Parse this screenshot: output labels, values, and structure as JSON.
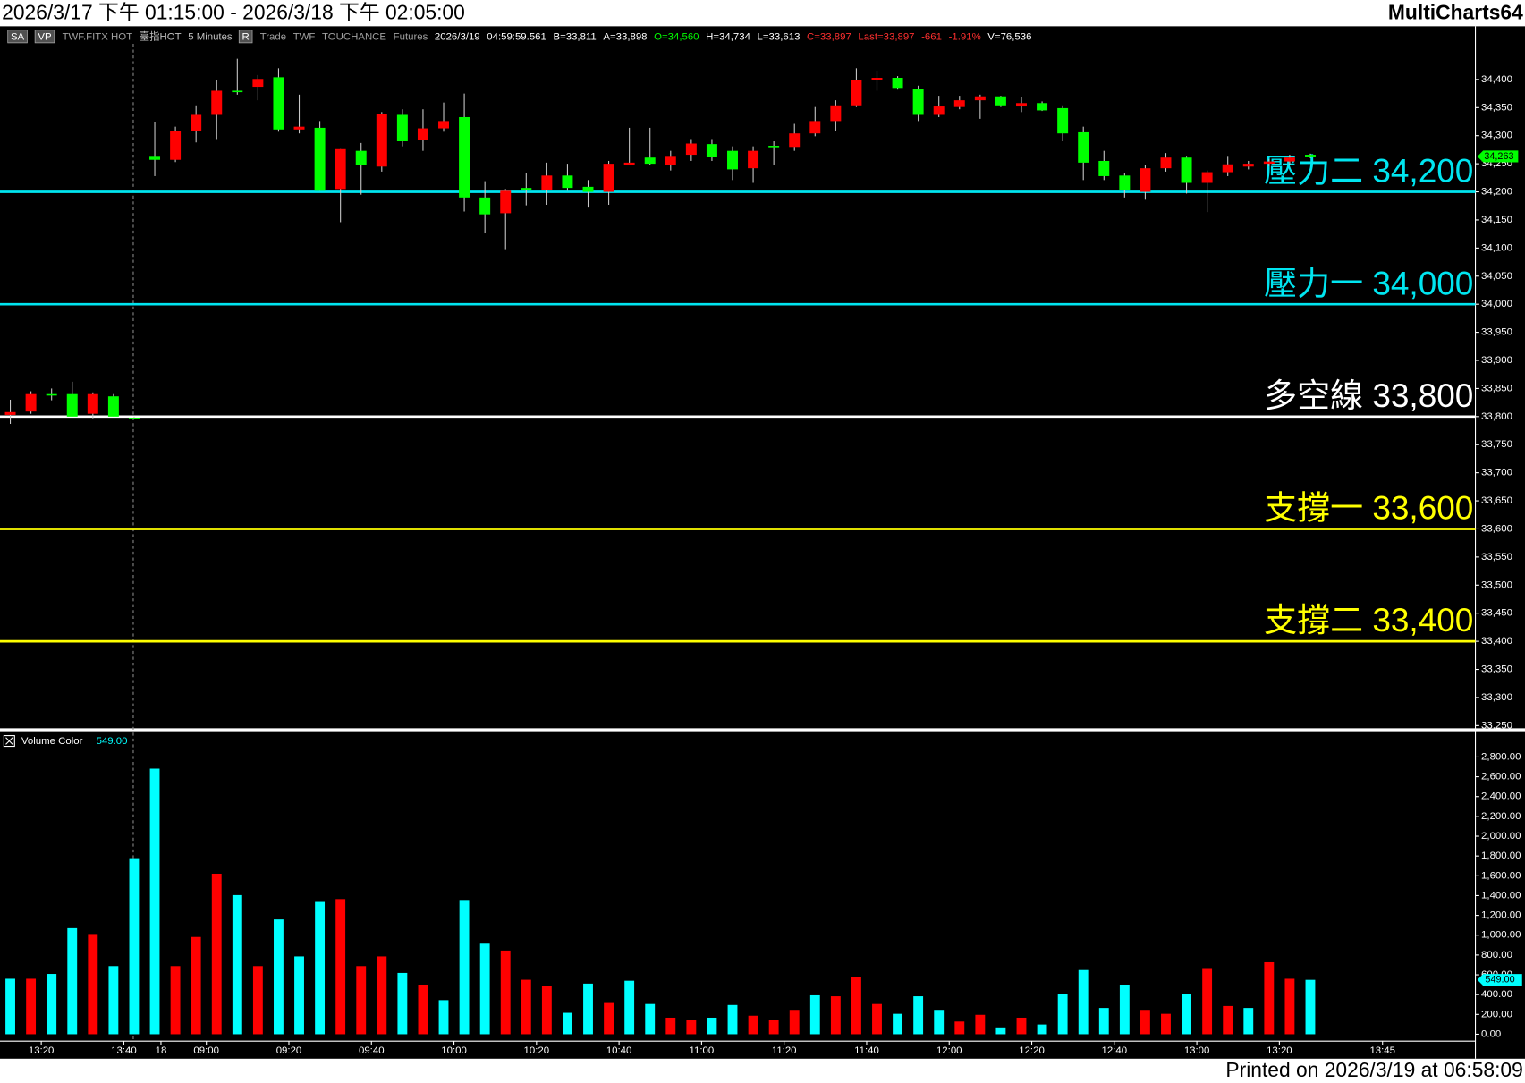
{
  "header": {
    "range": "2026/3/17 下午 01:15:00 - 2026/3/18 下午 02:05:00",
    "app": "MultiCharts64",
    "printed": "Printed on 2026/3/19 at 06:58:09"
  },
  "toolbar": [
    {
      "text": "SA",
      "color": "#ffffff",
      "boxed": true
    },
    {
      "text": "VP",
      "color": "#ffffff",
      "boxed": true
    },
    {
      "text": "TWF.FITX HOT",
      "color": "#a0a0a0"
    },
    {
      "text": "臺指HOT",
      "color": "#c0c0c0"
    },
    {
      "text": "5 Minutes",
      "color": "#c0c0c0"
    },
    {
      "text": "R",
      "color": "#ffffff",
      "boxed": true
    },
    {
      "text": "Trade",
      "color": "#a0a0a0"
    },
    {
      "text": "TWF",
      "color": "#a0a0a0"
    },
    {
      "text": "TOUCHANCE",
      "color": "#a0a0a0"
    },
    {
      "text": "Futures",
      "color": "#a0a0a0"
    },
    {
      "text": "2026/3/19",
      "color": "#ffffff"
    },
    {
      "text": "04:59:59.561",
      "color": "#ffffff"
    },
    {
      "text": "B=33,811",
      "color": "#ffffff"
    },
    {
      "text": "A=33,898",
      "color": "#ffffff"
    },
    {
      "text": "O=34,560",
      "color": "#00ff00"
    },
    {
      "text": "H=34,734",
      "color": "#ffffff"
    },
    {
      "text": "L=33,613",
      "color": "#ffffff"
    },
    {
      "text": "C=33,897",
      "color": "#ff3030"
    },
    {
      "text": "Last=33,897",
      "color": "#ff3030"
    },
    {
      "text": "-661",
      "color": "#ff3030"
    },
    {
      "text": "-1.91%",
      "color": "#ff3030"
    },
    {
      "text": "V=76,536",
      "color": "#ffffff"
    }
  ],
  "chart_data": [
    {
      "type": "candlestick",
      "up_color": "#ff0000",
      "down_color": "#00ff00",
      "wick_color": "#c8c8c8",
      "open": [
        33803,
        33809,
        33840,
        33840,
        33805,
        33836,
        33798,
        34264,
        34257,
        34309,
        34337,
        34380,
        34387,
        34404,
        34311,
        34314,
        34205,
        34273,
        34245,
        34337,
        34293,
        34313,
        34333,
        34190,
        34162,
        34207,
        34203,
        34229,
        34209,
        34200,
        34247,
        34261,
        34247,
        34266,
        34285,
        34273,
        34242,
        34282,
        34280,
        34304,
        34326,
        34354,
        34399,
        34403,
        34383,
        34337,
        34351,
        34363,
        34370,
        34352,
        34358,
        34349,
        34306,
        34255,
        34229,
        34200,
        34242,
        34261,
        34216,
        34235,
        34245,
        34250,
        34254,
        34266
      ],
      "high": [
        33830,
        33845,
        33850,
        33862,
        33843,
        33840,
        33800,
        34325,
        34316,
        34354,
        34399,
        34437,
        34408,
        34420,
        34373,
        34326,
        34276,
        34287,
        34342,
        34347,
        34347,
        34359,
        34375,
        34219,
        34205,
        34233,
        34252,
        34250,
        34221,
        34255,
        34314,
        34314,
        34273,
        34294,
        34294,
        34281,
        34281,
        34290,
        34321,
        34351,
        34363,
        34420,
        34416,
        34406,
        34389,
        34371,
        34371,
        34373,
        34371,
        34368,
        34361,
        34354,
        34316,
        34273,
        34233,
        34247,
        34269,
        34264,
        34238,
        34264,
        34255,
        34258,
        34266,
        34268
      ],
      "low": [
        33787,
        33805,
        33829,
        33800,
        33797,
        33800,
        33795,
        34228,
        34253,
        34288,
        34294,
        34373,
        34363,
        34307,
        34304,
        34202,
        34146,
        34195,
        34236,
        34281,
        34273,
        34307,
        34165,
        34126,
        34098,
        34176,
        34177,
        34202,
        34172,
        34177,
        34247,
        34247,
        34238,
        34255,
        34255,
        34221,
        34216,
        34247,
        34273,
        34299,
        34309,
        34351,
        34380,
        34382,
        34326,
        34333,
        34347,
        34330,
        34351,
        34342,
        34344,
        34290,
        34221,
        34221,
        34190,
        34186,
        34236,
        34197,
        34164,
        34228,
        34240,
        34246,
        34247,
        34260
      ],
      "close": [
        33808,
        33840,
        33838,
        33800,
        33840,
        33800,
        33796,
        34257,
        34309,
        34337,
        34380,
        34378,
        34401,
        34311,
        34316,
        34202,
        34276,
        34248,
        34339,
        34290,
        34313,
        34326,
        34190,
        34160,
        34202,
        34203,
        34229,
        34207,
        34200,
        34250,
        34252,
        34250,
        34264,
        34286,
        34262,
        34240,
        34273,
        34281,
        34304,
        34326,
        34354,
        34399,
        34403,
        34385,
        34337,
        34352,
        34363,
        34370,
        34354,
        34358,
        34345,
        34304,
        34252,
        34228,
        34203,
        34242,
        34261,
        34216,
        34235,
        34249,
        34250,
        34254,
        34261,
        34263
      ],
      "xlim": [
        -0.5,
        71
      ],
      "xticks": [
        {
          "value": 1.5,
          "label": "13:20"
        },
        {
          "value": 5.5,
          "label": "13:40"
        },
        {
          "value": 7.3,
          "label": "18"
        },
        {
          "value": 9.5,
          "label": "09:00"
        },
        {
          "value": 13.5,
          "label": "09:20"
        },
        {
          "value": 17.5,
          "label": "09:40"
        },
        {
          "value": 21.5,
          "label": "10:00"
        },
        {
          "value": 25.5,
          "label": "10:20"
        },
        {
          "value": 29.5,
          "label": "10:40"
        },
        {
          "value": 33.5,
          "label": "11:00"
        },
        {
          "value": 37.5,
          "label": "11:20"
        },
        {
          "value": 41.5,
          "label": "11:40"
        },
        {
          "value": 45.5,
          "label": "12:00"
        },
        {
          "value": 49.5,
          "label": "12:20"
        },
        {
          "value": 53.5,
          "label": "12:40"
        },
        {
          "value": 57.5,
          "label": "13:00"
        },
        {
          "value": 61.5,
          "label": "13:20"
        },
        {
          "value": 66.5,
          "label": "13:45"
        }
      ],
      "ylim": [
        33246,
        34493
      ],
      "yticks": [
        {
          "value": 33250,
          "label": "33,250"
        },
        {
          "value": 33300,
          "label": "33,300"
        },
        {
          "value": 33350,
          "label": "33,350"
        },
        {
          "value": 33400,
          "label": "33,400"
        },
        {
          "value": 33450,
          "label": "33,450"
        },
        {
          "value": 33500,
          "label": "33,500"
        },
        {
          "value": 33550,
          "label": "33,550"
        },
        {
          "value": 33600,
          "label": "33,600"
        },
        {
          "value": 33650,
          "label": "33,650"
        },
        {
          "value": 33700,
          "label": "33,700"
        },
        {
          "value": 33750,
          "label": "33,750"
        },
        {
          "value": 33800,
          "label": "33,800"
        },
        {
          "value": 33850,
          "label": "33,850"
        },
        {
          "value": 33900,
          "label": "33,900"
        },
        {
          "value": 33950,
          "label": "33,950"
        },
        {
          "value": 34000,
          "label": "34,000"
        },
        {
          "value": 34050,
          "label": "34,050"
        },
        {
          "value": 34100,
          "label": "34,100"
        },
        {
          "value": 34150,
          "label": "34,150"
        },
        {
          "value": 34200,
          "label": "34,200"
        },
        {
          "value": 34250,
          "label": "34,250"
        },
        {
          "value": 34300,
          "label": "34,300"
        },
        {
          "value": 34350,
          "label": "34,350"
        },
        {
          "value": 34400,
          "label": "34,400"
        }
      ],
      "hlines": [
        {
          "value": 34200,
          "label": "壓力二 34,200",
          "color": "#00e5f0"
        },
        {
          "value": 34000,
          "label": "壓力一 34,000",
          "color": "#00e5f0"
        },
        {
          "value": 33800,
          "label": "多空線 33,800",
          "color": "#ffffff"
        },
        {
          "value": 33600,
          "label": "支撐一 33,600",
          "color": "#ffff00"
        },
        {
          "value": 33400,
          "label": "支撐二 33,400",
          "color": "#ffff00"
        }
      ],
      "last_price": {
        "value": 34263,
        "label": "34,263",
        "color": "#00ff00"
      }
    },
    {
      "type": "bar",
      "title": "Volume Color",
      "last_value": {
        "value": 549,
        "label": "549.00",
        "color": "#00ffff"
      },
      "values": [
        560,
        560,
        609,
        1071,
        1012,
        688,
        1778,
        2682,
        688,
        982,
        1621,
        1405,
        688,
        1159,
        786,
        1336,
        1365,
        688,
        786,
        619,
        501,
        344,
        1356,
        914,
        845,
        550,
        491,
        216,
        511,
        324,
        540,
        305,
        167,
        147,
        167,
        295,
        187,
        147,
        246,
        393,
        383,
        580,
        305,
        206,
        383,
        246,
        128,
        196,
        69,
        167,
        98,
        403,
        648,
        265,
        501,
        246,
        206,
        403,
        668,
        285,
        265,
        727,
        560,
        549
      ],
      "colors": [
        "#00ffff",
        "#ff0000",
        "#00ffff",
        "#00ffff",
        "#ff0000",
        "#00ffff",
        "#00ffff",
        "#00ffff",
        "#ff0000",
        "#ff0000",
        "#ff0000",
        "#00ffff",
        "#ff0000",
        "#00ffff",
        "#00ffff",
        "#00ffff",
        "#ff0000",
        "#ff0000",
        "#ff0000",
        "#00ffff",
        "#ff0000",
        "#00ffff",
        "#00ffff",
        "#00ffff",
        "#ff0000",
        "#ff0000",
        "#ff0000",
        "#00ffff",
        "#00ffff",
        "#ff0000",
        "#00ffff",
        "#00ffff",
        "#ff0000",
        "#ff0000",
        "#00ffff",
        "#00ffff",
        "#ff0000",
        "#ff0000",
        "#ff0000",
        "#00ffff",
        "#ff0000",
        "#ff0000",
        "#ff0000",
        "#00ffff",
        "#00ffff",
        "#00ffff",
        "#ff0000",
        "#ff0000",
        "#00ffff",
        "#ff0000",
        "#00ffff",
        "#00ffff",
        "#00ffff",
        "#00ffff",
        "#00ffff",
        "#ff0000",
        "#ff0000",
        "#00ffff",
        "#ff0000",
        "#ff0000",
        "#00ffff",
        "#ff0000",
        "#ff0000",
        "#00ffff"
      ],
      "ylim": [
        -70,
        3055
      ],
      "yticks": [
        {
          "value": 0,
          "label": "0.00"
        },
        {
          "value": 200,
          "label": "200.00"
        },
        {
          "value": 400,
          "label": "400.00"
        },
        {
          "value": 600,
          "label": "600.00"
        },
        {
          "value": 800,
          "label": "800.00"
        },
        {
          "value": 1000,
          "label": "1,000.00"
        },
        {
          "value": 1200,
          "label": "1,200.00"
        },
        {
          "value": 1400,
          "label": "1,400.00"
        },
        {
          "value": 1600,
          "label": "1,600.00"
        },
        {
          "value": 1800,
          "label": "1,800.00"
        },
        {
          "value": 2000,
          "label": "2,000.00"
        },
        {
          "value": 2200,
          "label": "2,200.00"
        },
        {
          "value": 2400,
          "label": "2,400.00"
        },
        {
          "value": 2600,
          "label": "2,600.00"
        },
        {
          "value": 2800,
          "label": "2,800.00"
        }
      ]
    }
  ]
}
